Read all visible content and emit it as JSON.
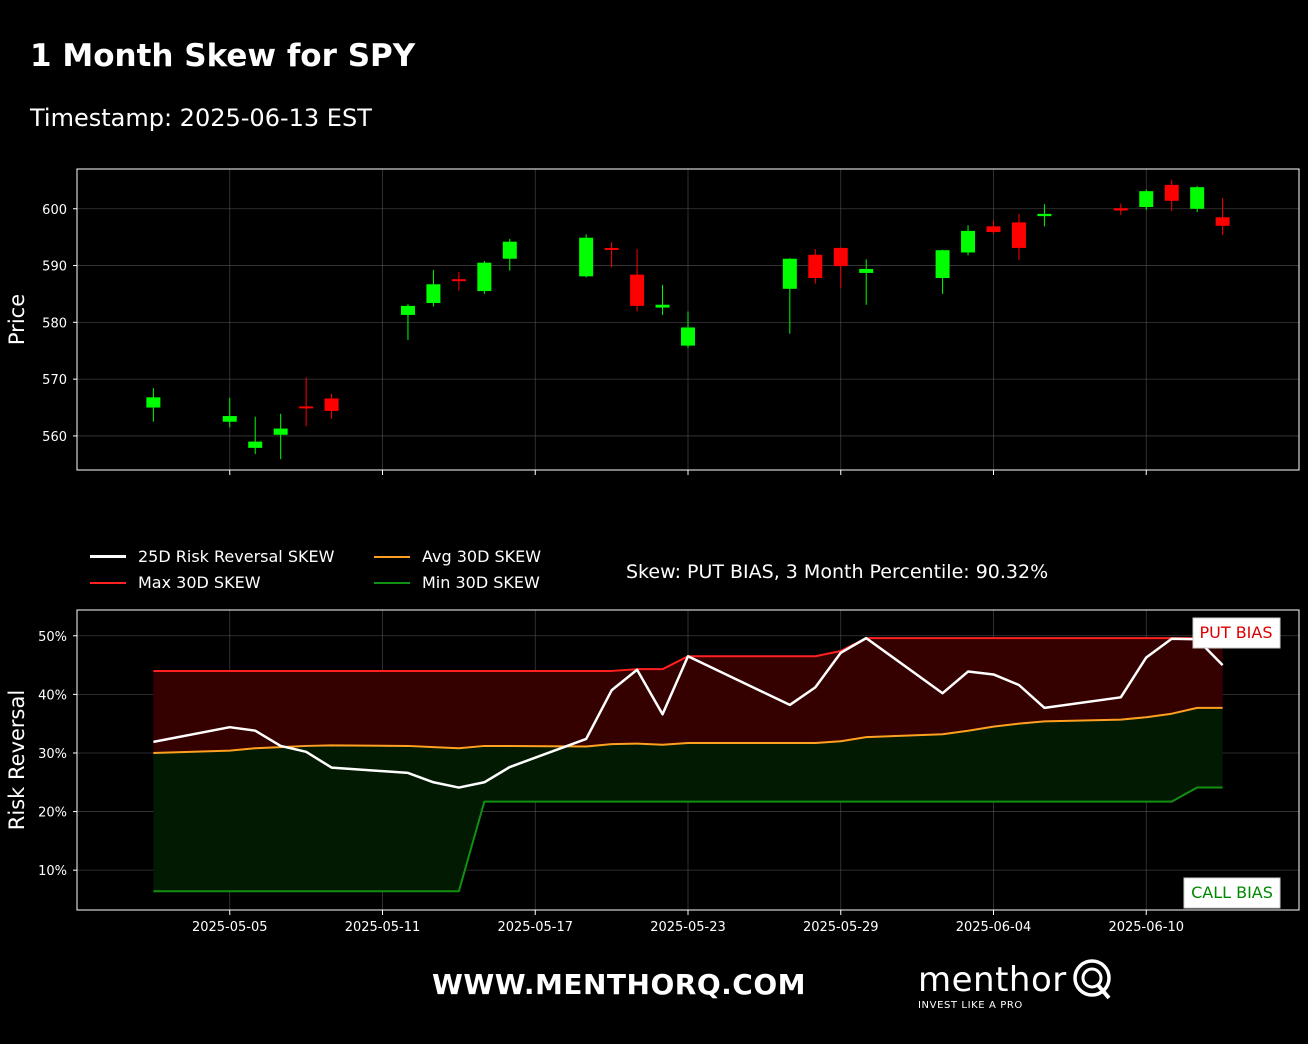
{
  "header": {
    "title": "1 Month Skew for SPY",
    "timestamp": "Timestamp: 2025-06-13 EST"
  },
  "colors": {
    "background": "#000000",
    "up_candle": "#00ff00",
    "down_candle": "#ff0000",
    "risk_reversal": "#ffffff",
    "max_skew": "#ff2020",
    "avg_skew": "#ffa020",
    "min_skew": "#109010",
    "put_fill": "#350000",
    "call_fill": "#021a02",
    "put_label": "#dd0000",
    "call_label": "#008800"
  },
  "legend": [
    {
      "label": "25D Risk Reversal SKEW",
      "color": "#ffffff",
      "width": 3
    },
    {
      "label": "Avg 30D SKEW",
      "color": "#ffa020",
      "width": 2
    },
    {
      "label": "Max 30D SKEW",
      "color": "#ff2020",
      "width": 2
    },
    {
      "label": "Min 30D SKEW",
      "color": "#109010",
      "width": 2
    }
  ],
  "skew_status": "Skew: PUT BIAS, 3 Month Percentile: 90.32%",
  "footer": {
    "website": "WWW.MENTHORQ.COM",
    "logo_text": "menthor",
    "logo_mark": "Q",
    "tagline": "INVEST LIKE A PRO"
  },
  "chart_data": [
    {
      "type": "candlestick",
      "ylabel": "Price",
      "ylim": [
        554,
        607
      ],
      "yticks": [
        560,
        570,
        580,
        590,
        600
      ],
      "xlim": [
        "2025-04-29",
        "2025-06-16"
      ],
      "xticks": [
        "2025-05-05",
        "2025-05-11",
        "2025-05-17",
        "2025-05-23",
        "2025-05-29",
        "2025-06-04",
        "2025-06-10"
      ],
      "grid": true,
      "candles": [
        {
          "date": "2025-05-02",
          "open": 565.0,
          "high": 568.4,
          "low": 562.5,
          "close": 566.8
        },
        {
          "date": "2025-05-05",
          "open": 562.5,
          "high": 566.7,
          "low": 561.5,
          "close": 563.5
        },
        {
          "date": "2025-05-06",
          "open": 557.9,
          "high": 563.4,
          "low": 556.8,
          "close": 559.0
        },
        {
          "date": "2025-05-07",
          "open": 560.2,
          "high": 563.9,
          "low": 555.9,
          "close": 561.3
        },
        {
          "date": "2025-05-08",
          "open": 565.2,
          "high": 570.3,
          "low": 561.7,
          "close": 565.0
        },
        {
          "date": "2025-05-09",
          "open": 566.6,
          "high": 567.4,
          "low": 563.0,
          "close": 564.4
        },
        {
          "date": "2025-05-12",
          "open": 581.3,
          "high": 583.2,
          "low": 576.9,
          "close": 582.9
        },
        {
          "date": "2025-05-13",
          "open": 583.4,
          "high": 589.2,
          "low": 582.8,
          "close": 586.7
        },
        {
          "date": "2025-05-14",
          "open": 587.6,
          "high": 588.9,
          "low": 585.6,
          "close": 587.5
        },
        {
          "date": "2025-05-15",
          "open": 585.5,
          "high": 590.8,
          "low": 585.0,
          "close": 590.5
        },
        {
          "date": "2025-05-16",
          "open": 591.2,
          "high": 594.7,
          "low": 589.1,
          "close": 594.2
        },
        {
          "date": "2025-05-19",
          "open": 588.1,
          "high": 595.5,
          "low": 587.9,
          "close": 594.9
        },
        {
          "date": "2025-05-20",
          "open": 593.1,
          "high": 594.1,
          "low": 589.7,
          "close": 592.8
        },
        {
          "date": "2025-05-21",
          "open": 588.4,
          "high": 592.9,
          "low": 581.9,
          "close": 582.9
        },
        {
          "date": "2025-05-22",
          "open": 582.6,
          "high": 586.6,
          "low": 581.3,
          "close": 583.1
        },
        {
          "date": "2025-05-23",
          "open": 575.9,
          "high": 581.9,
          "low": 575.5,
          "close": 579.1
        },
        {
          "date": "2025-05-27",
          "open": 585.9,
          "high": 591.3,
          "low": 578.0,
          "close": 591.2
        },
        {
          "date": "2025-05-28",
          "open": 591.9,
          "high": 592.9,
          "low": 586.8,
          "close": 587.8
        },
        {
          "date": "2025-05-29",
          "open": 593.1,
          "high": 593.2,
          "low": 586.1,
          "close": 589.9
        },
        {
          "date": "2025-05-30",
          "open": 588.7,
          "high": 591.1,
          "low": 583.1,
          "close": 589.4
        },
        {
          "date": "2025-06-02",
          "open": 587.8,
          "high": 592.8,
          "low": 585.0,
          "close": 592.7
        },
        {
          "date": "2025-06-03",
          "open": 592.3,
          "high": 597.1,
          "low": 591.8,
          "close": 596.1
        },
        {
          "date": "2025-06-04",
          "open": 596.9,
          "high": 597.9,
          "low": 595.6,
          "close": 595.9
        },
        {
          "date": "2025-06-05",
          "open": 597.6,
          "high": 599.1,
          "low": 591.0,
          "close": 593.1
        },
        {
          "date": "2025-06-06",
          "open": 598.7,
          "high": 600.8,
          "low": 596.9,
          "close": 599.1
        },
        {
          "date": "2025-06-09",
          "open": 600.1,
          "high": 600.9,
          "low": 598.9,
          "close": 599.7
        },
        {
          "date": "2025-06-10",
          "open": 600.3,
          "high": 603.4,
          "low": 599.8,
          "close": 603.1
        },
        {
          "date": "2025-06-11",
          "open": 604.2,
          "high": 605.1,
          "low": 599.6,
          "close": 601.4
        },
        {
          "date": "2025-06-12",
          "open": 600.0,
          "high": 604.0,
          "low": 599.4,
          "close": 603.8
        },
        {
          "date": "2025-06-13",
          "open": 598.5,
          "high": 601.9,
          "low": 595.4,
          "close": 597.0
        }
      ]
    },
    {
      "type": "line",
      "ylabel": "Risk Reversal",
      "ylim": [
        0.032,
        0.544
      ],
      "yticks": [
        0.1,
        0.2,
        0.3,
        0.4,
        0.5
      ],
      "ytick_labels": [
        "10%",
        "20%",
        "30%",
        "40%",
        "50%"
      ],
      "xlim": [
        "2025-04-29",
        "2025-06-16"
      ],
      "xticks": [
        "2025-05-05",
        "2025-05-11",
        "2025-05-17",
        "2025-05-23",
        "2025-05-29",
        "2025-06-04",
        "2025-06-10"
      ],
      "grid": true,
      "put_label": "PUT BIAS",
      "call_label": "CALL BIAS",
      "dates": [
        "2025-05-02",
        "2025-05-05",
        "2025-05-06",
        "2025-05-07",
        "2025-05-08",
        "2025-05-09",
        "2025-05-12",
        "2025-05-13",
        "2025-05-14",
        "2025-05-15",
        "2025-05-16",
        "2025-05-19",
        "2025-05-20",
        "2025-05-21",
        "2025-05-22",
        "2025-05-23",
        "2025-05-27",
        "2025-05-28",
        "2025-05-29",
        "2025-05-30",
        "2025-06-02",
        "2025-06-03",
        "2025-06-04",
        "2025-06-05",
        "2025-06-06",
        "2025-06-09",
        "2025-06-10",
        "2025-06-11",
        "2025-06-12",
        "2025-06-13"
      ],
      "series": [
        {
          "name": "25D Risk Reversal SKEW",
          "values": [
            0.319,
            0.344,
            0.338,
            0.312,
            0.302,
            0.275,
            0.266,
            0.25,
            0.241,
            0.25,
            0.276,
            0.324,
            0.407,
            0.442,
            0.366,
            0.465,
            0.382,
            0.412,
            0.471,
            0.496,
            0.402,
            0.439,
            0.434,
            0.416,
            0.377,
            0.395,
            0.463,
            0.495,
            0.494,
            0.45
          ]
        },
        {
          "name": "Max 30D SKEW",
          "values": [
            0.44,
            0.44,
            0.44,
            0.44,
            0.44,
            0.44,
            0.44,
            0.44,
            0.44,
            0.44,
            0.44,
            0.44,
            0.44,
            0.443,
            0.443,
            0.465,
            0.465,
            0.465,
            0.474,
            0.496,
            0.496,
            0.496,
            0.496,
            0.496,
            0.496,
            0.496,
            0.496,
            0.496,
            0.496,
            0.496
          ]
        },
        {
          "name": "Avg 30D SKEW",
          "values": [
            0.3,
            0.304,
            0.308,
            0.31,
            0.312,
            0.313,
            0.312,
            0.31,
            0.308,
            0.312,
            0.312,
            0.311,
            0.315,
            0.316,
            0.314,
            0.317,
            0.317,
            0.317,
            0.32,
            0.327,
            0.332,
            0.338,
            0.345,
            0.35,
            0.354,
            0.357,
            0.361,
            0.367,
            0.377,
            0.377
          ]
        },
        {
          "name": "Min 30D SKEW",
          "values": [
            0.064,
            0.064,
            0.064,
            0.064,
            0.064,
            0.064,
            0.064,
            0.064,
            0.064,
            0.217,
            0.217,
            0.217,
            0.217,
            0.217,
            0.217,
            0.217,
            0.217,
            0.217,
            0.217,
            0.217,
            0.217,
            0.217,
            0.217,
            0.217,
            0.217,
            0.217,
            0.217,
            0.217,
            0.241,
            0.241
          ]
        }
      ]
    }
  ]
}
